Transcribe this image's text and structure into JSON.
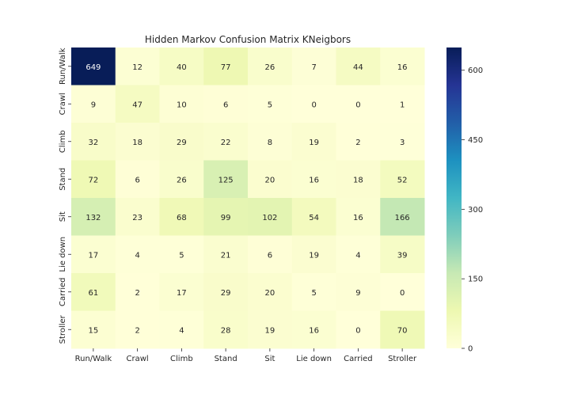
{
  "chart_data": {
    "type": "heatmap",
    "title": "Hidden Markov Confusion Matrix KNeigbors",
    "x_categories": [
      "Run/Walk",
      "Crawl",
      "Climb",
      "Stand",
      "Sit",
      "Lie down",
      "Carried",
      "Stroller"
    ],
    "y_categories": [
      "Run/Walk",
      "Crawl",
      "Climb",
      "Stand",
      "Sit",
      "Lie down",
      "Carried",
      "Stroller"
    ],
    "values": [
      [
        649,
        12,
        40,
        77,
        26,
        7,
        44,
        16
      ],
      [
        9,
        47,
        10,
        6,
        5,
        0,
        0,
        1
      ],
      [
        32,
        18,
        29,
        22,
        8,
        19,
        2,
        3
      ],
      [
        72,
        6,
        26,
        125,
        20,
        16,
        18,
        52
      ],
      [
        132,
        23,
        68,
        99,
        102,
        54,
        16,
        166
      ],
      [
        17,
        4,
        5,
        21,
        6,
        19,
        4,
        39
      ],
      [
        61,
        2,
        17,
        29,
        20,
        5,
        9,
        0
      ],
      [
        15,
        2,
        4,
        28,
        19,
        16,
        0,
        70
      ]
    ],
    "colormap": "YlGnBu",
    "colormap_stops": [
      "#ffffd9",
      "#edf8b1",
      "#c7e9b4",
      "#7fcdbb",
      "#41b6c4",
      "#1d91c0",
      "#225ea8",
      "#253494",
      "#081d58"
    ],
    "vmin": 0,
    "vmax": 649,
    "colorbar_ticks": [
      0,
      150,
      300,
      450,
      600
    ],
    "legend": "right"
  }
}
